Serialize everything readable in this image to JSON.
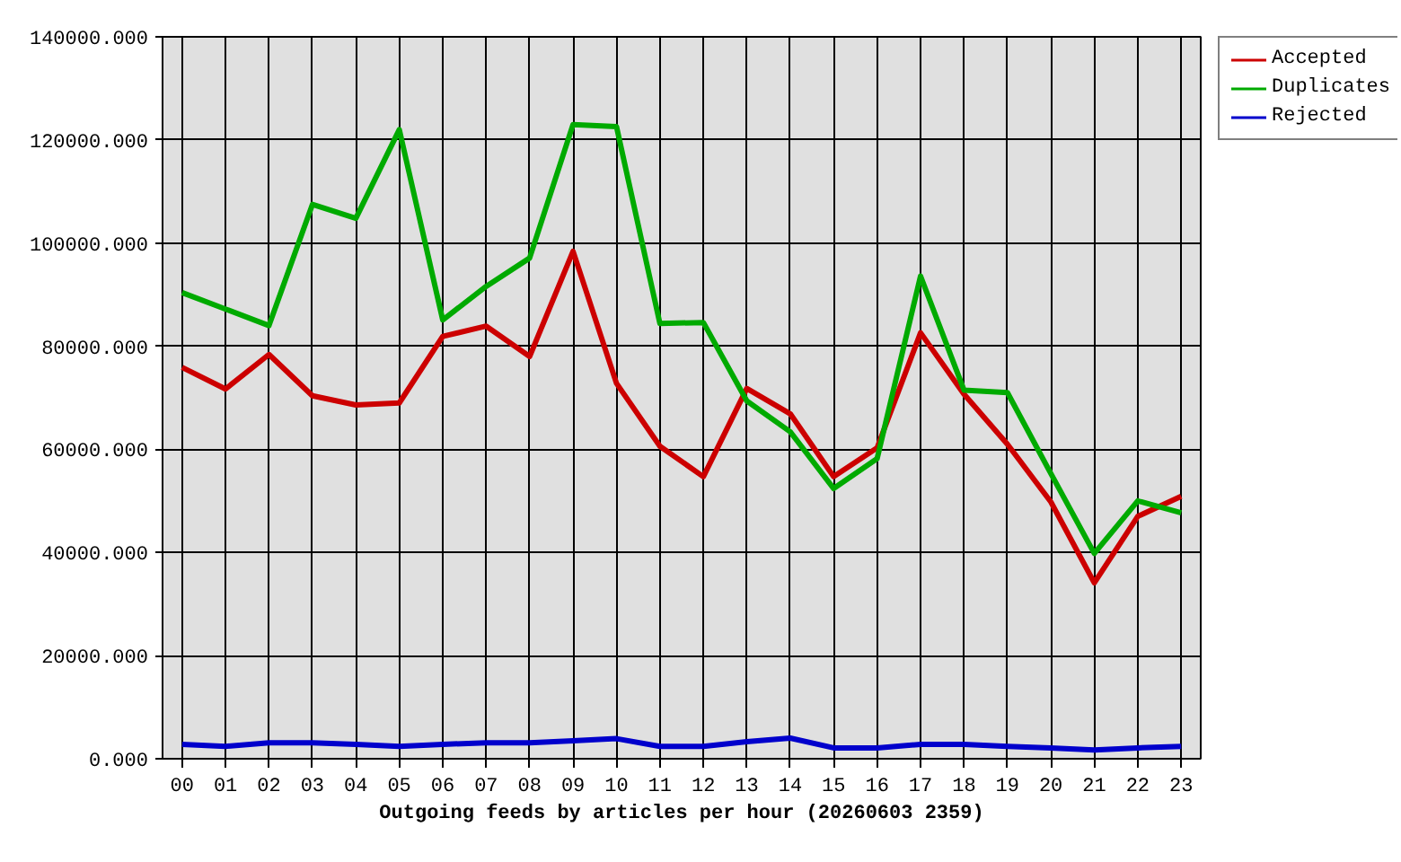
{
  "chart_data": {
    "type": "line",
    "xlabel": "Outgoing feeds by articles per hour (20260603 2359)",
    "categories": [
      "00",
      "01",
      "02",
      "03",
      "04",
      "05",
      "06",
      "07",
      "08",
      "09",
      "10",
      "11",
      "12",
      "13",
      "14",
      "15",
      "16",
      "17",
      "18",
      "19",
      "20",
      "21",
      "22",
      "23"
    ],
    "series": [
      {
        "name": "Accepted",
        "color": "#cc0000",
        "values": [
          75900,
          71700,
          78400,
          70400,
          68600,
          69000,
          81900,
          83900,
          78000,
          98400,
          72800,
          60600,
          54700,
          71800,
          66900,
          54700,
          60300,
          82600,
          70700,
          61000,
          49800,
          34100,
          47000,
          50900
        ]
      },
      {
        "name": "Duplicates",
        "color": "#00aa00",
        "values": [
          90400,
          87200,
          84000,
          107500,
          104800,
          122000,
          85100,
          91600,
          97100,
          123000,
          122600,
          84400,
          84600,
          69400,
          63400,
          52400,
          58200,
          93600,
          71500,
          71000,
          55300,
          39800,
          50000,
          47700
        ]
      },
      {
        "name": "Rejected",
        "color": "#0000cc",
        "values": [
          2800,
          2400,
          3100,
          3100,
          2800,
          2400,
          2800,
          3100,
          3100,
          3500,
          3900,
          2400,
          2400,
          3300,
          4000,
          2100,
          2100,
          2800,
          2800,
          2400,
          2100,
          1700,
          2100,
          2400
        ]
      }
    ],
    "ylim": [
      0,
      140000
    ],
    "yticks": [
      {
        "value": 0,
        "label": "0.000"
      },
      {
        "value": 20000,
        "label": "20000.000"
      },
      {
        "value": 40000,
        "label": "40000.000"
      },
      {
        "value": 60000,
        "label": "60000.000"
      },
      {
        "value": 80000,
        "label": "80000.000"
      },
      {
        "value": 100000,
        "label": "100000.000"
      },
      {
        "value": 120000,
        "label": "120000.000"
      },
      {
        "value": 140000,
        "label": "140000.000"
      }
    ],
    "grid": true,
    "legend": "top right",
    "line_style": "solid"
  }
}
